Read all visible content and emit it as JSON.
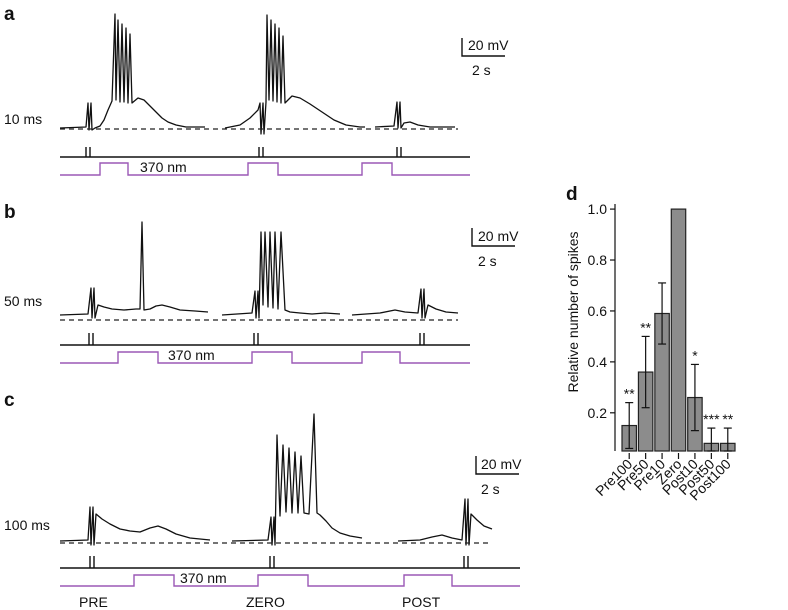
{
  "panels": {
    "a": {
      "letter": "a",
      "duration": "10 ms",
      "light_label": "370 nm",
      "scale_v": "20 mV",
      "scale_t": "2 s"
    },
    "b": {
      "letter": "b",
      "duration": "50 ms",
      "light_label": "370 nm",
      "scale_v": "20 mV",
      "scale_t": "2 s"
    },
    "c": {
      "letter": "c",
      "duration": "100 ms",
      "light_label": "370 nm",
      "scale_v": "20 mV",
      "scale_t": "2 s"
    }
  },
  "conditions": [
    "PRE",
    "ZERO",
    "POST"
  ],
  "colors": {
    "light_trace": "#9b59b6",
    "bar_fill": "#8c8c8c",
    "trace": "#111111"
  },
  "chart_data": {
    "letter": "d",
    "type": "bar",
    "categories": [
      "Pre100",
      "Pre50",
      "Pre10",
      "Zero",
      "Post10",
      "Post50",
      "Post100"
    ],
    "values": [
      0.15,
      0.36,
      0.59,
      1.0,
      0.26,
      0.08,
      0.08
    ],
    "errors": [
      0.09,
      0.14,
      0.12,
      0.0,
      0.13,
      0.06,
      0.06
    ],
    "significance": [
      "**",
      "**",
      "",
      "",
      "*",
      "***",
      "**"
    ],
    "ylabel": "Relative number of spikes",
    "xlabel": "",
    "ylim": [
      0.05,
      1.02
    ],
    "yticks": [
      0.2,
      0.4,
      0.6,
      0.8,
      1.0
    ],
    "ytick_labels": [
      "0.2",
      "0.4",
      "0.6",
      "0.8",
      "1.0"
    ]
  }
}
